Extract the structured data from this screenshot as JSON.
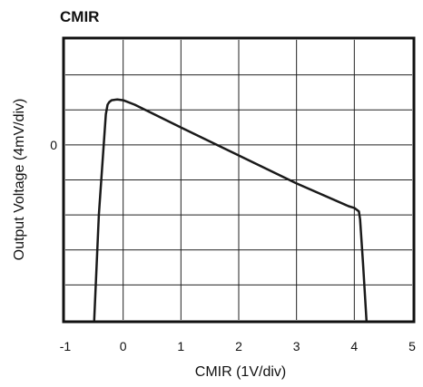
{
  "chart_data": {
    "type": "line",
    "title": "CMIR",
    "xlabel": "CMIR (1V/div)",
    "ylabel": "Output Voltage (4mV/div)",
    "xlim": [
      -1,
      5
    ],
    "ylim": [
      -20,
      12
    ],
    "x_ticks": [
      "-1",
      "0",
      "1",
      "2",
      "3",
      "4",
      "5"
    ],
    "y_ticks": [
      "0"
    ],
    "grid": true,
    "legend": "none",
    "line_color": "#1a1a1a",
    "series": [
      {
        "x": [
          -0.5,
          -0.42,
          -0.3,
          -0.27,
          -0.24,
          -0.2,
          -0.1,
          0.0,
          0.2,
          1.0,
          2.0,
          3.0,
          3.9,
          4.0,
          4.08,
          4.1,
          4.15,
          4.21
        ],
        "y": [
          -20,
          -8,
          3.5,
          4.6,
          4.9,
          5.1,
          5.2,
          5.1,
          4.6,
          2.0,
          -1.2,
          -4.4,
          -7.0,
          -7.2,
          -7.6,
          -8.5,
          -13.5,
          -20
        ]
      }
    ]
  }
}
